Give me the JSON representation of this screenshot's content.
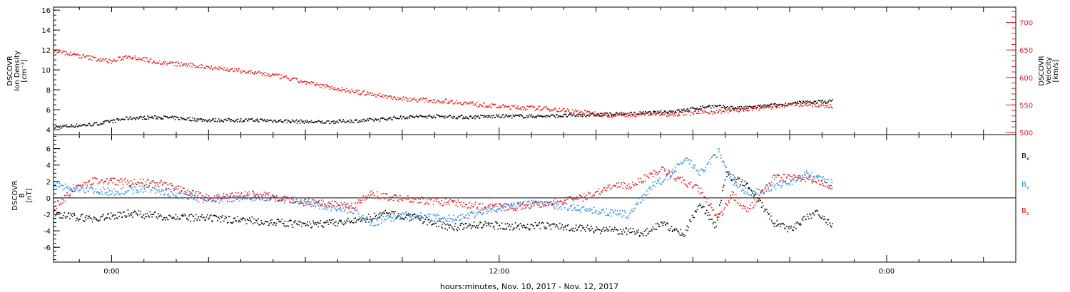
{
  "figure": {
    "xlabel": "hours:minutes, Nov. 10, 2017 - Nov. 12, 2017",
    "x_tick_labels": [
      {
        "hour": 0,
        "label": "0:00"
      },
      {
        "hour": 12,
        "label": "12:00"
      },
      {
        "hour": 24,
        "label": "0:00"
      }
    ],
    "colors": {
      "axes": "#000000",
      "velocity": "#e41a1c",
      "by": "#1e88e5",
      "bx": "#000000",
      "bz": "#e41a1c"
    }
  },
  "chart_data": [
    {
      "type": "scatter",
      "title": "",
      "xlim_hours": [
        -1.8,
        28.0
      ],
      "ylabel_lines": [
        "DSCOVR",
        "Ion Density",
        "[cm⁻³]"
      ],
      "ylim": [
        3.5,
        16.3
      ],
      "yticks": [
        4,
        6,
        8,
        10,
        12,
        14,
        16
      ],
      "right_axis": {
        "label_lines": [
          "DSCOVR",
          "Velocity",
          "[km/s]"
        ],
        "ylim": [
          496,
          728
        ],
        "yticks": [
          500,
          550,
          600,
          650,
          700
        ],
        "tick_labels": [
          "500",
          "550",
          "600",
          "650",
          "700"
        ]
      },
      "series": [
        {
          "name": "Ion Density",
          "axis": "left",
          "color": "#000000",
          "x_hours": [
            -1.8,
            -0.5,
            0.5,
            1.5,
            3.0,
            4.5,
            6.5,
            8.0,
            9.0,
            10.0,
            11.0,
            12.0,
            13.5,
            14.5,
            15.5,
            16.5,
            17.5,
            18.5,
            19.5,
            20.5,
            21.5,
            22.3
          ],
          "values": [
            4.3,
            4.6,
            5.2,
            5.3,
            5.0,
            5.0,
            4.8,
            5.0,
            5.3,
            5.4,
            5.3,
            5.4,
            5.4,
            5.5,
            5.6,
            5.7,
            5.9,
            6.4,
            6.2,
            6.5,
            6.8,
            6.9
          ]
        },
        {
          "name": "Velocity",
          "axis": "right",
          "color": "#e41a1c",
          "x_hours": [
            -1.8,
            -1.0,
            0.0,
            0.5,
            1.5,
            3.0,
            5.0,
            6.0,
            6.3,
            7.5,
            9.0,
            10.5,
            12.0,
            13.5,
            14.5,
            15.5,
            16.5,
            17.5,
            18.5,
            19.5,
            20.5,
            21.5,
            22.3
          ],
          "values": [
            650,
            640,
            630,
            640,
            628,
            620,
            605,
            592,
            588,
            575,
            562,
            557,
            548,
            544,
            538,
            532,
            534,
            535,
            538,
            542,
            548,
            553,
            548
          ]
        }
      ]
    },
    {
      "type": "scatter",
      "title": "",
      "ylabel_lines": [
        "DSCOVR",
        "B",
        "[nT]"
      ],
      "ylim": [
        -7.8,
        7.7
      ],
      "yticks": [
        -6,
        -4,
        -2,
        0,
        2,
        4,
        6
      ],
      "zero_line": true,
      "legend_position": "right",
      "series": [
        {
          "name": "Bx",
          "legend_label": "B",
          "legend_sub": "x",
          "color": "#000000",
          "x_hours": [
            -1.8,
            -0.5,
            0.5,
            2.0,
            4.0,
            6.0,
            7.5,
            8.5,
            9.5,
            10.5,
            11.5,
            12.5,
            13.5,
            14.5,
            15.5,
            16.5,
            17.0,
            17.7,
            18.2,
            18.7,
            19.0,
            19.7,
            20.5,
            21.0,
            21.8,
            22.3
          ],
          "values": [
            -2.0,
            -2.5,
            -1.8,
            -2.3,
            -2.6,
            -3.2,
            -2.8,
            -1.8,
            -2.5,
            -3.5,
            -3.2,
            -3.4,
            -3.3,
            -3.6,
            -3.9,
            -4.2,
            -3.0,
            -4.4,
            -0.5,
            -3.5,
            3.0,
            1.5,
            -3.0,
            -3.8,
            -1.6,
            -3.4
          ]
        },
        {
          "name": "By",
          "legend_label": "B",
          "legend_sub": "y",
          "color": "#1e88e5",
          "x_hours": [
            -1.8,
            -1.0,
            0.0,
            1.0,
            2.0,
            3.0,
            4.5,
            6.0,
            7.5,
            8.0,
            9.0,
            10.5,
            12.0,
            13.0,
            14.0,
            15.0,
            15.5,
            16.0,
            16.7,
            17.2,
            17.8,
            18.2,
            18.8,
            19.2,
            19.8,
            20.5,
            21.0,
            21.5,
            22.3
          ],
          "values": [
            1.5,
            1.2,
            0.8,
            1.2,
            0.5,
            -0.2,
            0.2,
            -0.5,
            -1.5,
            -3.0,
            -2.0,
            -2.5,
            -1.2,
            -0.5,
            -1.0,
            -1.5,
            -1.8,
            -2.0,
            1.5,
            2.5,
            5.0,
            3.0,
            5.8,
            2.0,
            0.5,
            1.5,
            2.0,
            3.0,
            1.8
          ]
        },
        {
          "name": "Bz",
          "legend_label": "B",
          "legend_sub": "z",
          "color": "#e41a1c",
          "x_hours": [
            -1.8,
            -1.0,
            -0.5,
            0.5,
            1.5,
            3.0,
            4.5,
            6.0,
            7.5,
            8.0,
            9.5,
            10.5,
            11.5,
            12.5,
            13.5,
            14.5,
            15.5,
            16.0,
            16.5,
            17.0,
            17.5,
            18.2,
            18.8,
            19.2,
            19.7,
            20.5,
            21.0,
            21.5,
            22.3
          ],
          "values": [
            -1.0,
            1.5,
            2.2,
            2.0,
            1.8,
            0.0,
            0.5,
            -0.5,
            -0.8,
            0.5,
            -0.2,
            -0.5,
            -1.0,
            -1.0,
            -0.5,
            0.0,
            1.5,
            1.5,
            2.5,
            3.5,
            2.5,
            1.0,
            -2.5,
            0.5,
            -1.5,
            2.5,
            2.5,
            2.5,
            1.5
          ]
        }
      ]
    }
  ]
}
